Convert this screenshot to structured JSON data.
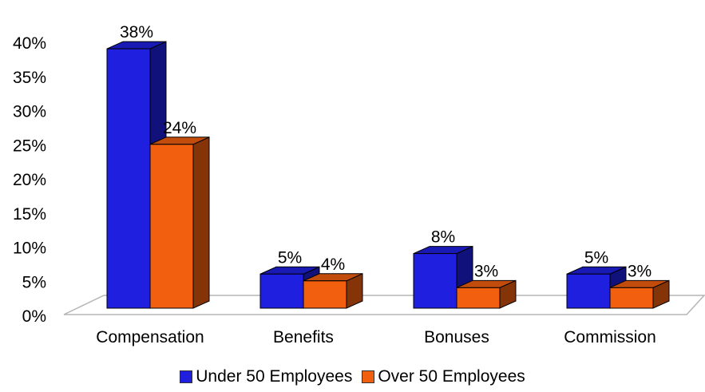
{
  "chart_data": {
    "type": "bar",
    "categories": [
      "Compensation",
      "Benefits",
      "Bonuses",
      "Commission"
    ],
    "series": [
      {
        "name": "Under 50 Employees",
        "values": [
          38,
          5,
          8,
          5
        ],
        "labels": [
          "38%",
          "5%",
          "8%",
          "5%"
        ],
        "color": "#1f1fe0"
      },
      {
        "name": "Over 50 Employees",
        "values": [
          24,
          4,
          3,
          3
        ],
        "labels": [
          "24%",
          "4%",
          "3%",
          "3%"
        ],
        "color": "#f25f0f"
      }
    ],
    "yticks": [
      "0%",
      "5%",
      "10%",
      "15%",
      "20%",
      "25%",
      "30%",
      "35%",
      "40%"
    ],
    "ylim": [
      0,
      40
    ],
    "legend_position": "bottom",
    "style": "3d"
  }
}
